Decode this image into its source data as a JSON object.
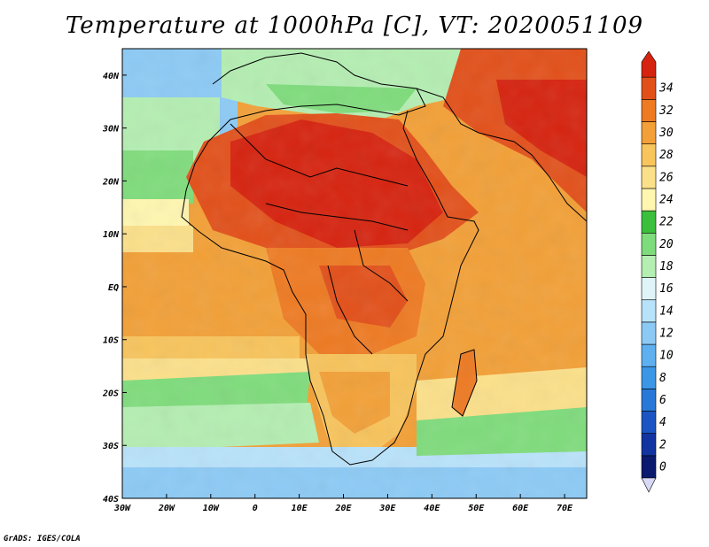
{
  "title": "Temperature at 1000hPa [C], VT: 2020051109",
  "credit": "GrADS: IGES/COLA",
  "map": {
    "lon_range": [
      -30,
      75
    ],
    "lat_range": [
      -40,
      45
    ],
    "x_ticks": [
      "30W",
      "20W",
      "10W",
      "0",
      "10E",
      "20E",
      "30E",
      "40E",
      "50E",
      "60E",
      "70E"
    ],
    "y_ticks": [
      "40S",
      "30S",
      "20S",
      "10S",
      "EQ",
      "10N",
      "20N",
      "30N",
      "40N"
    ]
  },
  "colorbar": {
    "labels": [
      "0",
      "2",
      "4",
      "6",
      "8",
      "10",
      "12",
      "14",
      "16",
      "18",
      "20",
      "22",
      "24",
      "26",
      "28",
      "30",
      "32",
      "34"
    ],
    "colors": [
      "#0a1a6e",
      "#1234a0",
      "#1b55c4",
      "#2878d8",
      "#3c96e6",
      "#5fb0ef",
      "#8ccaf5",
      "#b8e2fa",
      "#dff4f8",
      "#b4eeb2",
      "#7fdc7c",
      "#3cbf3c",
      "#fff6b0",
      "#fbe08a",
      "#f8c45c",
      "#f2a037",
      "#ee7a22",
      "#e2501a",
      "#d6230f"
    ],
    "under_color": "#d8d8f6"
  }
}
